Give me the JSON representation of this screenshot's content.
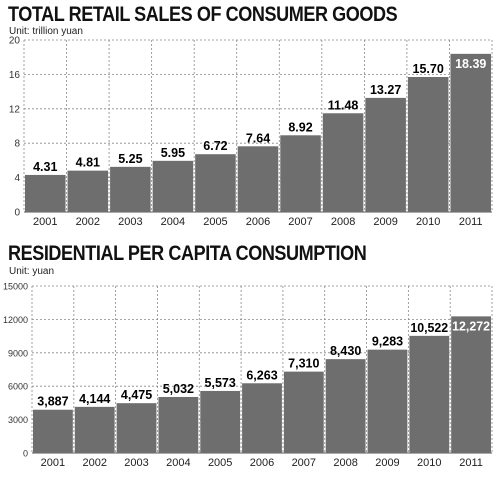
{
  "chart_data": [
    {
      "type": "bar",
      "title": "TOTAL RETAIL SALES OF CONSUMER GOODS",
      "unit_label": "Unit: trillion yuan",
      "categories": [
        "2001",
        "2002",
        "2003",
        "2004",
        "2005",
        "2006",
        "2007",
        "2008",
        "2009",
        "2010",
        "2011"
      ],
      "values": [
        4.31,
        4.81,
        5.25,
        5.95,
        6.72,
        7.64,
        8.92,
        11.48,
        13.27,
        15.7,
        18.39
      ],
      "value_labels": [
        "4.31",
        "4.81",
        "5.25",
        "5.95",
        "6.72",
        "7.64",
        "8.92",
        "11.48",
        "13.27",
        "15.70",
        "18.39"
      ],
      "highlight_index": 10,
      "ylim": [
        0,
        20
      ],
      "yticks": [
        0,
        4,
        8,
        12,
        16,
        20
      ],
      "ytick_labels": [
        "0",
        "4",
        "8",
        "12",
        "16",
        "20"
      ],
      "grid": true,
      "colors": {
        "bar": "#6e6e6e",
        "bar_highlight": "#6e6e6e",
        "label_highlight": "#ffffff",
        "label": "#000000",
        "grid": "#888888"
      }
    },
    {
      "type": "bar",
      "title": "RESIDENTIAL PER CAPITA CONSUMPTION",
      "unit_label": "Unit: yuan",
      "categories": [
        "2001",
        "2002",
        "2003",
        "2004",
        "2005",
        "2006",
        "2007",
        "2008",
        "2009",
        "2010",
        "2011"
      ],
      "values": [
        3887,
        4144,
        4475,
        5032,
        5573,
        6263,
        7310,
        8430,
        9283,
        10522,
        12272
      ],
      "value_labels": [
        "3,887",
        "4,144",
        "4,475",
        "5,032",
        "5,573",
        "6,263",
        "7,310",
        "8,430",
        "9,283",
        "10,522",
        "12,272"
      ],
      "highlight_index": 10,
      "ylim": [
        0,
        15000
      ],
      "yticks": [
        0,
        3000,
        6000,
        9000,
        12000,
        15000
      ],
      "ytick_labels": [
        "0",
        "3000",
        "6000",
        "9000",
        "12000",
        "15000"
      ],
      "grid": true,
      "colors": {
        "bar": "#6e6e6e",
        "bar_highlight": "#6e6e6e",
        "label_highlight": "#ffffff",
        "label": "#000000",
        "grid": "#888888"
      }
    }
  ]
}
